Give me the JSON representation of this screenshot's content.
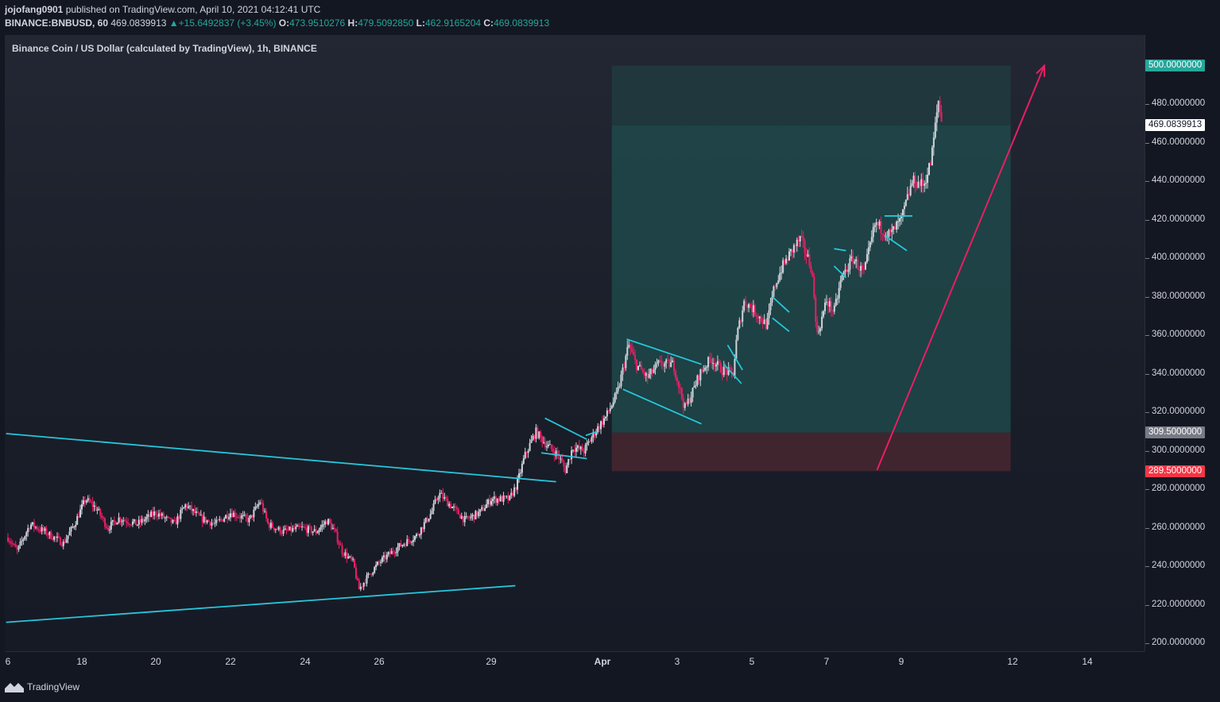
{
  "header": {
    "author": "jojofang0901",
    "published_text": "published on TradingView.com, April 10, 2021 04:12:41 UTC",
    "symbol": "BINANCE:BNBUSD, 60",
    "last_price": "469.0839913",
    "change_arrow": "▲",
    "change": "+15.6492837 (+3.45%)",
    "open_label": "O:",
    "open": "473.9510276",
    "high_label": "H:",
    "high": "479.5092850",
    "low_label": "L:",
    "low": "462.9165204",
    "close_label": "C:",
    "close": "469.0839913"
  },
  "chart_title": "Binance Coin / US Dollar (calculated by TradingView), 1h, BINANCE",
  "footer": {
    "brand": "TradingView"
  },
  "colors": {
    "background": "#131722",
    "up_candle": "#d1d4dc",
    "down_candle": "#e91e63",
    "trendline": "#26c6da",
    "arrow": "#e91e63",
    "target_zone": "#1f4e4e",
    "stop_zone": "#4a2830",
    "accent_green": "#26a69a",
    "accent_red": "#f23645"
  },
  "chart_data": {
    "type": "candlestick",
    "title": "Binance Coin / US Dollar (calculated by TradingView), 1h, BINANCE",
    "symbol": "BINANCE:BNBUSD",
    "interval": "60",
    "ylim": [
      196,
      516
    ],
    "price_ticks": [
      "500.0000000",
      "480.0000000",
      "460.0000000",
      "440.0000000",
      "420.0000000",
      "400.0000000",
      "380.0000000",
      "360.0000000",
      "340.0000000",
      "320.0000000",
      "300.0000000",
      "280.0000000",
      "260.0000000",
      "240.0000000",
      "220.0000000",
      "200.0000000"
    ],
    "price_tick_values": [
      500,
      480,
      460,
      440,
      420,
      400,
      380,
      360,
      340,
      320,
      300,
      280,
      260,
      240,
      220,
      200
    ],
    "time_ticks": [
      {
        "label": "6",
        "day": 16
      },
      {
        "label": "18",
        "day": 18
      },
      {
        "label": "20",
        "day": 20
      },
      {
        "label": "22",
        "day": 22
      },
      {
        "label": "24",
        "day": 24
      },
      {
        "label": "26",
        "day": 26
      },
      {
        "label": "29",
        "day": 29
      },
      {
        "label": "Apr",
        "day": 32
      },
      {
        "label": "3",
        "day": 34
      },
      {
        "label": "5",
        "day": 36
      },
      {
        "label": "7",
        "day": 38
      },
      {
        "label": "9",
        "day": 40
      },
      {
        "label": "12",
        "day": 43
      },
      {
        "label": "14",
        "day": 45
      }
    ],
    "price_labels": {
      "target": "500.0000000",
      "current": "469.0839913",
      "entry": "309.5000000",
      "stop": "289.5000000"
    },
    "position": {
      "direction": "long",
      "entry": 309.5,
      "stop": 289.5,
      "target": 500,
      "start_day": 32.25,
      "end_day": 42.95
    },
    "close_path": [
      {
        "d": 16.0,
        "p": 255
      },
      {
        "d": 16.25,
        "p": 248
      },
      {
        "d": 16.6,
        "p": 262
      },
      {
        "d": 17.0,
        "p": 258
      },
      {
        "d": 17.5,
        "p": 252
      },
      {
        "d": 17.8,
        "p": 262
      },
      {
        "d": 18.1,
        "p": 275
      },
      {
        "d": 18.4,
        "p": 270
      },
      {
        "d": 18.7,
        "p": 260
      },
      {
        "d": 19.0,
        "p": 265
      },
      {
        "d": 19.5,
        "p": 262
      },
      {
        "d": 20.0,
        "p": 268
      },
      {
        "d": 20.5,
        "p": 262
      },
      {
        "d": 20.8,
        "p": 272
      },
      {
        "d": 21.2,
        "p": 265
      },
      {
        "d": 21.6,
        "p": 262
      },
      {
        "d": 22.0,
        "p": 268
      },
      {
        "d": 22.5,
        "p": 264
      },
      {
        "d": 22.8,
        "p": 274
      },
      {
        "d": 23.0,
        "p": 262
      },
      {
        "d": 23.4,
        "p": 258
      },
      {
        "d": 23.9,
        "p": 260
      },
      {
        "d": 24.3,
        "p": 258
      },
      {
        "d": 24.6,
        "p": 264
      },
      {
        "d": 24.8,
        "p": 258
      },
      {
        "d": 25.0,
        "p": 248
      },
      {
        "d": 25.3,
        "p": 242
      },
      {
        "d": 25.45,
        "p": 228
      },
      {
        "d": 25.7,
        "p": 235
      },
      {
        "d": 26.0,
        "p": 242
      },
      {
        "d": 26.5,
        "p": 250
      },
      {
        "d": 27.0,
        "p": 256
      },
      {
        "d": 27.4,
        "p": 268
      },
      {
        "d": 27.6,
        "p": 278
      },
      {
        "d": 28.0,
        "p": 270
      },
      {
        "d": 28.3,
        "p": 264
      },
      {
        "d": 28.7,
        "p": 268
      },
      {
        "d": 29.0,
        "p": 275
      },
      {
        "d": 29.5,
        "p": 275
      },
      {
        "d": 29.7,
        "p": 283
      },
      {
        "d": 29.9,
        "p": 297
      },
      {
        "d": 30.2,
        "p": 310
      },
      {
        "d": 30.5,
        "p": 303
      },
      {
        "d": 30.8,
        "p": 298
      },
      {
        "d": 31.0,
        "p": 290
      },
      {
        "d": 31.2,
        "p": 302
      },
      {
        "d": 31.5,
        "p": 300
      },
      {
        "d": 31.8,
        "p": 310
      },
      {
        "d": 32.1,
        "p": 318
      },
      {
        "d": 32.4,
        "p": 330
      },
      {
        "d": 32.7,
        "p": 355
      },
      {
        "d": 32.9,
        "p": 345
      },
      {
        "d": 33.2,
        "p": 338
      },
      {
        "d": 33.5,
        "p": 345
      },
      {
        "d": 33.9,
        "p": 345
      },
      {
        "d": 34.2,
        "p": 322
      },
      {
        "d": 34.4,
        "p": 330
      },
      {
        "d": 34.6,
        "p": 340
      },
      {
        "d": 34.9,
        "p": 348
      },
      {
        "d": 35.2,
        "p": 342
      },
      {
        "d": 35.5,
        "p": 340
      },
      {
        "d": 35.6,
        "p": 360
      },
      {
        "d": 35.8,
        "p": 378
      },
      {
        "d": 36.1,
        "p": 372
      },
      {
        "d": 36.4,
        "p": 365
      },
      {
        "d": 36.6,
        "p": 385
      },
      {
        "d": 36.8,
        "p": 395
      },
      {
        "d": 37.1,
        "p": 405
      },
      {
        "d": 37.3,
        "p": 410
      },
      {
        "d": 37.6,
        "p": 395
      },
      {
        "d": 37.75,
        "p": 360
      },
      {
        "d": 38.0,
        "p": 378
      },
      {
        "d": 38.2,
        "p": 372
      },
      {
        "d": 38.4,
        "p": 390
      },
      {
        "d": 38.7,
        "p": 400
      },
      {
        "d": 39.0,
        "p": 392
      },
      {
        "d": 39.3,
        "p": 418
      },
      {
        "d": 39.7,
        "p": 412
      },
      {
        "d": 40.0,
        "p": 420
      },
      {
        "d": 40.3,
        "p": 440
      },
      {
        "d": 40.6,
        "p": 438
      },
      {
        "d": 40.8,
        "p": 450
      },
      {
        "d": 41.0,
        "p": 482
      },
      {
        "d": 41.1,
        "p": 469
      }
    ],
    "trendlines": [
      {
        "from": {
          "d": 15.95,
          "p": 309
        },
        "to": {
          "d": 30.75,
          "p": 284
        }
      },
      {
        "from": {
          "d": 15.95,
          "p": 211
        },
        "to": {
          "d": 29.65,
          "p": 230
        }
      },
      {
        "from": {
          "d": 30.45,
          "p": 317
        },
        "to": {
          "d": 31.58,
          "p": 306
        }
      },
      {
        "from": {
          "d": 30.35,
          "p": 299
        },
        "to": {
          "d": 31.58,
          "p": 296
        }
      },
      {
        "from": {
          "d": 31.55,
          "p": 308
        },
        "to": {
          "d": 31.85,
          "p": 310
        }
      },
      {
        "from": {
          "d": 32.65,
          "p": 358
        },
        "to": {
          "d": 34.65,
          "p": 345
        }
      },
      {
        "from": {
          "d": 32.55,
          "p": 332
        },
        "to": {
          "d": 34.65,
          "p": 314
        }
      },
      {
        "from": {
          "d": 35.35,
          "p": 355
        },
        "to": {
          "d": 35.75,
          "p": 342
        }
      },
      {
        "from": {
          "d": 35.25,
          "p": 345
        },
        "to": {
          "d": 35.72,
          "p": 335
        }
      },
      {
        "from": {
          "d": 36.55,
          "p": 380
        },
        "to": {
          "d": 37.0,
          "p": 372
        }
      },
      {
        "from": {
          "d": 36.55,
          "p": 369
        },
        "to": {
          "d": 37.0,
          "p": 362
        }
      },
      {
        "from": {
          "d": 38.2,
          "p": 405
        },
        "to": {
          "d": 38.52,
          "p": 404
        }
      },
      {
        "from": {
          "d": 38.2,
          "p": 396
        },
        "to": {
          "d": 38.52,
          "p": 390
        }
      },
      {
        "from": {
          "d": 39.55,
          "p": 422
        },
        "to": {
          "d": 40.3,
          "p": 422
        }
      },
      {
        "from": {
          "d": 39.55,
          "p": 412
        },
        "to": {
          "d": 40.15,
          "p": 404
        }
      }
    ],
    "arrow": {
      "from": {
        "d": 39.35,
        "p": 290
      },
      "to": {
        "d": 43.85,
        "p": 500
      }
    }
  }
}
